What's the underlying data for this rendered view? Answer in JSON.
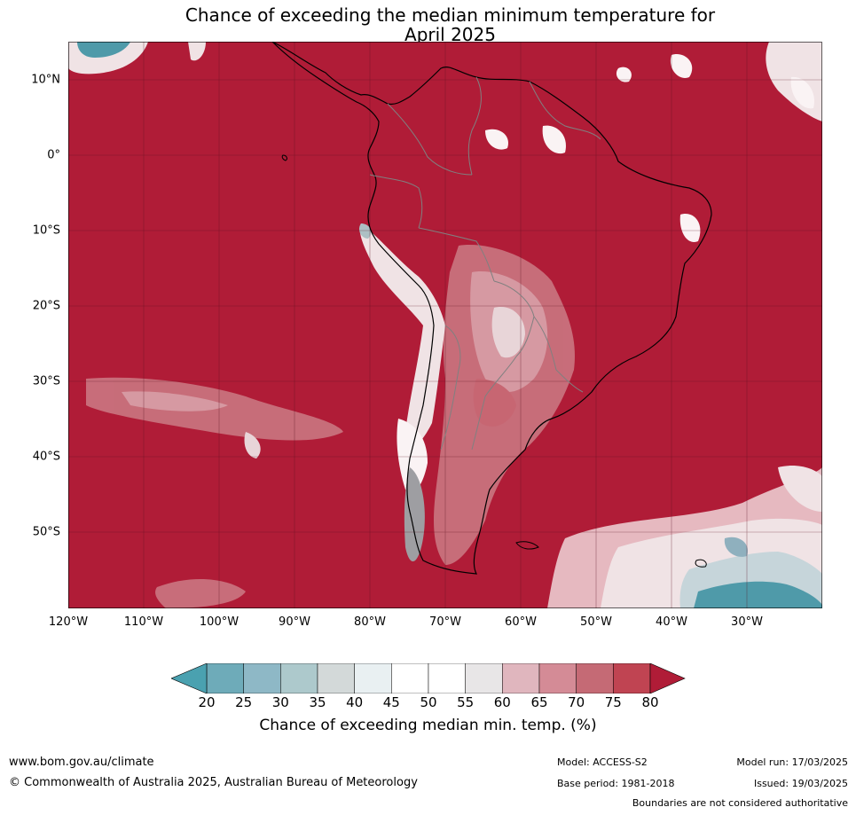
{
  "title": {
    "line1": "Chance of exceeding the median minimum temperature for",
    "line2": "April 2025"
  },
  "map": {
    "lat_labels": [
      "10°N",
      "0°",
      "10°S",
      "20°S",
      "30°S",
      "40°S",
      "50°S"
    ],
    "lon_labels": [
      "120°W",
      "110°W",
      "100°W",
      "90°W",
      "80°W",
      "70°W",
      "60°W",
      "50°W",
      "40°W",
      "30°W"
    ],
    "dominant_color": "#b01c37",
    "region": "South America"
  },
  "colorbar": {
    "ticks": [
      "20",
      "25",
      "30",
      "35",
      "40",
      "45",
      "50",
      "55",
      "60",
      "65",
      "70",
      "75",
      "80"
    ],
    "colors": [
      "#4aa1b0",
      "#6eabb9",
      "#8eb8c6",
      "#adc9cc",
      "#d3d9d9",
      "#e9f0f2",
      "#ffffff",
      "#ffffff",
      "#e8e6e7",
      "#e0b6be",
      "#d48b96",
      "#c56a75",
      "#c04452",
      "#b01c37"
    ],
    "label": "Chance of exceeding median min. temp. (%)"
  },
  "footer": {
    "website": "www.bom.gov.au/climate",
    "copyright": "© Commonwealth of Australia 2025, Australian Bureau of Meteorology",
    "model": "Model: ACCESS-S2",
    "base_period": "Base period: 1981-2018",
    "model_run": "Model run: 17/03/2025",
    "issued": "Issued: 19/03/2025",
    "disclaimer": "Boundaries are not considered authoritative"
  }
}
